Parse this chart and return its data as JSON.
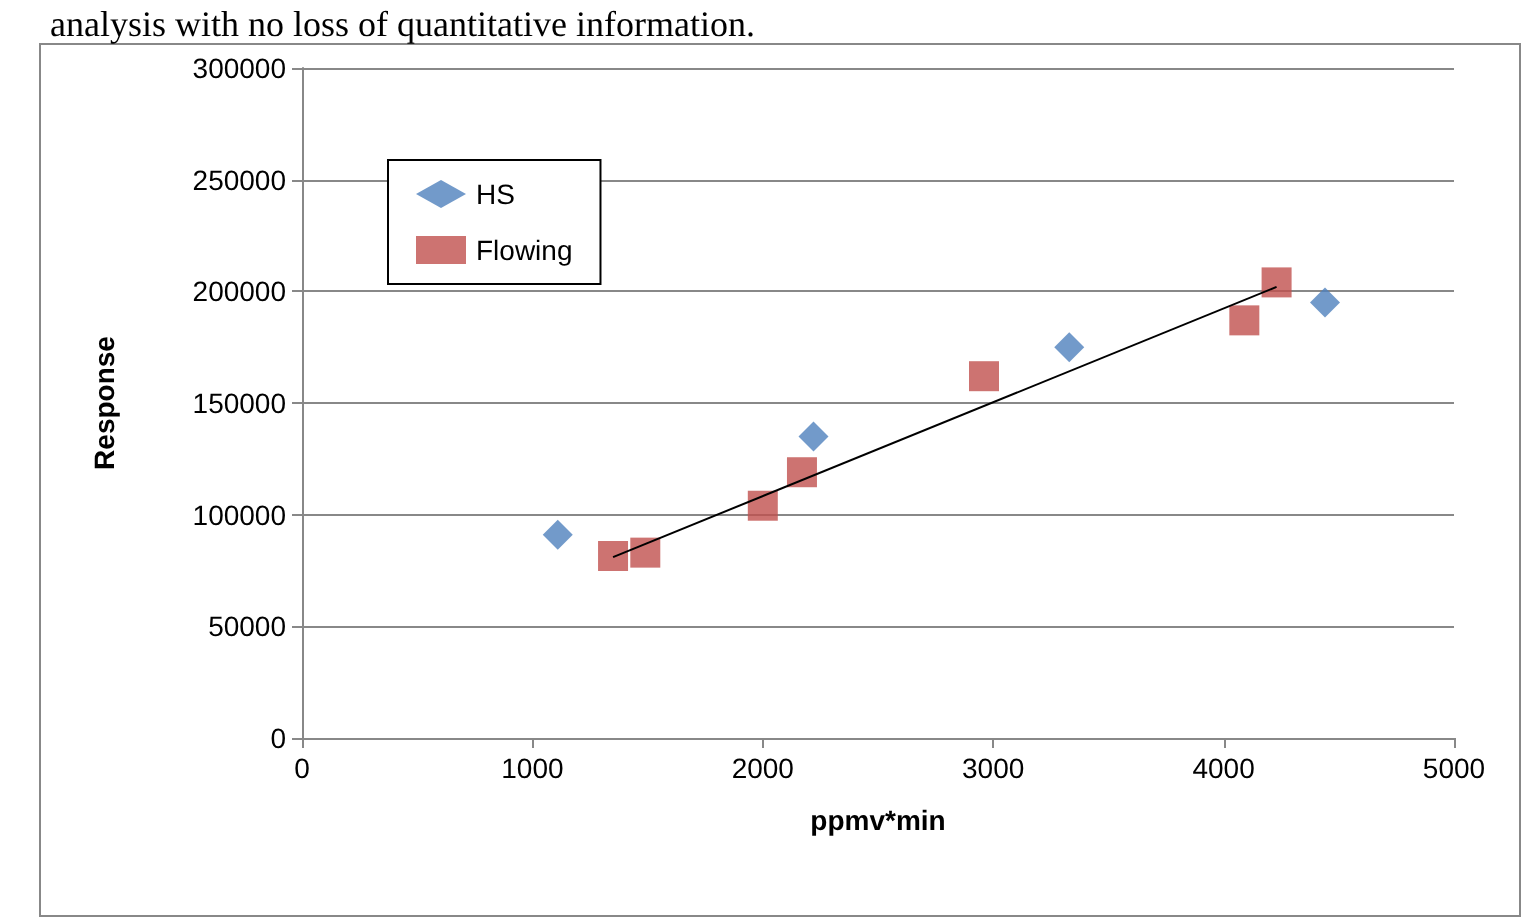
{
  "chart_data": {
    "type": "scatter",
    "xlabel": "ppmv*min",
    "ylabel": "Response",
    "annotations": [
      "analysis with no loss of quantitative information."
    ],
    "series": [
      {
        "name": "HS",
        "color": "#4f81bd",
        "marker": "diamond",
        "x": [
          1110,
          2220,
          3330,
          4440
        ],
        "values": [
          91000,
          135000,
          175000,
          195000
        ]
      },
      {
        "name": "Flowing",
        "color": "#c0504d",
        "marker": "square",
        "x": [
          1350,
          1490,
          2000,
          2170,
          2960,
          4090,
          4230
        ],
        "values": [
          81500,
          83000,
          104000,
          119000,
          162000,
          187000,
          204000
        ]
      },
      {
        "type": "line",
        "color": "#000000",
        "marker": "none",
        "x": [
          1350,
          4230
        ],
        "values": [
          81000,
          202000
        ]
      }
    ],
    "xlim": [
      0,
      5000
    ],
    "xticks": [
      0,
      1000,
      2000,
      3000,
      4000,
      5000
    ],
    "ylim": [
      0,
      300000
    ],
    "yticks": [
      0,
      50000,
      100000,
      150000,
      200000,
      250000,
      300000
    ],
    "grid": "y",
    "legend": "top left"
  }
}
